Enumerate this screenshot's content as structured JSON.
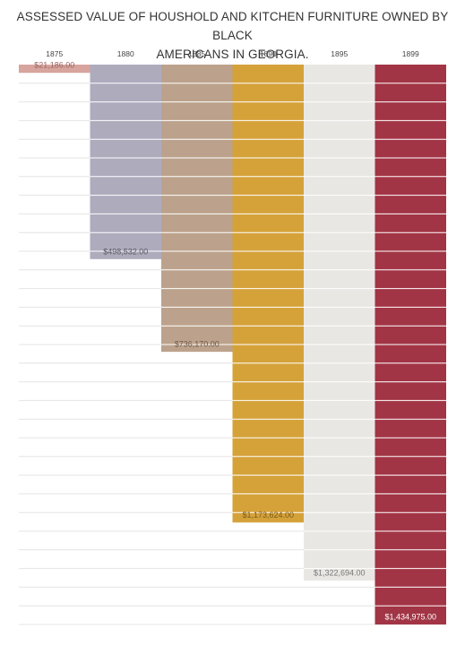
{
  "title_lines": [
    "ASSESSED VALUE OF HOUSHOLD AND KITCHEN FURNITURE OWNED BY BLACK",
    "AMERICANS IN GEORGIA."
  ],
  "chart_data": {
    "type": "bar",
    "title": "ASSESSED VALUE OF HOUSHOLD AND KITCHEN FURNITURE OWNED BY BLACK AMERICANS IN GEORGIA.",
    "categories": [
      "1875",
      "1880",
      "1885",
      "1890",
      "1895",
      "1899"
    ],
    "values": [
      21186.0,
      498532.0,
      736170.0,
      1173624.0,
      1322694.0,
      1434975.0
    ],
    "value_labels": [
      "$21,186.00",
      "$498,532.00",
      "$736,170.00",
      "$1,173,624.00",
      "$1,322,694.00",
      "$1,434,975.00"
    ],
    "colors": [
      "#d8a49e",
      "#aeabbd",
      "#bca28c",
      "#d5a23a",
      "#e9e7e3",
      "#a23545"
    ],
    "label_colors": [
      "#9a6660",
      "#5b5a66",
      "#6e5a47",
      "#7a5a1a",
      "#777777",
      "#ffffff"
    ],
    "grid_color": "#e4e4e4",
    "band_line_color": "#ffffff",
    "ylim": [
      0,
      1434975
    ],
    "orientation": "downward"
  }
}
